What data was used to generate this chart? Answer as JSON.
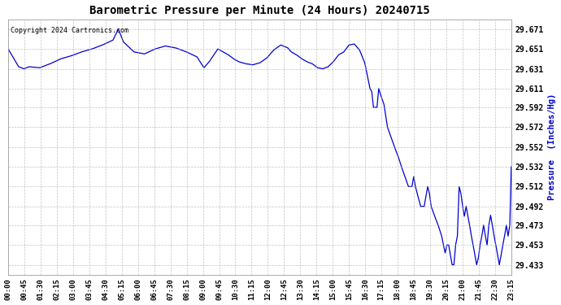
{
  "title": "Barometric Pressure per Minute (24 Hours) 20240715",
  "copyright_text": "Copyright 2024 Cartronics.com",
  "ylabel": "Pressure  (Inches/Hg)",
  "line_color": "#0000CC",
  "bg_color": "#ffffff",
  "grid_color": "#aaaaaa",
  "yticks": [
    29.433,
    29.453,
    29.473,
    29.492,
    29.512,
    29.532,
    29.552,
    29.572,
    29.592,
    29.611,
    29.631,
    29.651,
    29.671
  ],
  "ylim": [
    29.423,
    29.681
  ],
  "xtick_labels": [
    "00:00",
    "00:45",
    "01:30",
    "02:15",
    "03:00",
    "03:45",
    "04:30",
    "05:15",
    "06:00",
    "06:45",
    "07:30",
    "08:15",
    "09:00",
    "09:45",
    "10:30",
    "11:15",
    "12:00",
    "12:45",
    "13:30",
    "14:15",
    "15:00",
    "15:45",
    "16:30",
    "17:15",
    "18:00",
    "18:45",
    "19:30",
    "20:15",
    "21:00",
    "21:45",
    "22:30",
    "23:15"
  ],
  "key_points": [
    [
      0,
      29.651
    ],
    [
      30,
      29.633
    ],
    [
      45,
      29.631
    ],
    [
      60,
      29.633
    ],
    [
      90,
      29.632
    ],
    [
      120,
      29.636
    ],
    [
      150,
      29.641
    ],
    [
      180,
      29.644
    ],
    [
      210,
      29.648
    ],
    [
      240,
      29.651
    ],
    [
      270,
      29.655
    ],
    [
      300,
      29.66
    ],
    [
      315,
      29.671
    ],
    [
      330,
      29.658
    ],
    [
      360,
      29.648
    ],
    [
      390,
      29.646
    ],
    [
      420,
      29.651
    ],
    [
      450,
      29.654
    ],
    [
      480,
      29.652
    ],
    [
      510,
      29.648
    ],
    [
      540,
      29.643
    ],
    [
      560,
      29.632
    ],
    [
      575,
      29.638
    ],
    [
      590,
      29.646
    ],
    [
      600,
      29.651
    ],
    [
      615,
      29.648
    ],
    [
      630,
      29.645
    ],
    [
      645,
      29.641
    ],
    [
      660,
      29.638
    ],
    [
      680,
      29.636
    ],
    [
      700,
      29.635
    ],
    [
      720,
      29.637
    ],
    [
      740,
      29.642
    ],
    [
      760,
      29.65
    ],
    [
      780,
      29.655
    ],
    [
      800,
      29.652
    ],
    [
      810,
      29.648
    ],
    [
      825,
      29.645
    ],
    [
      840,
      29.641
    ],
    [
      855,
      29.638
    ],
    [
      870,
      29.636
    ],
    [
      885,
      29.632
    ],
    [
      900,
      29.631
    ],
    [
      915,
      29.633
    ],
    [
      930,
      29.638
    ],
    [
      945,
      29.645
    ],
    [
      960,
      29.648
    ],
    [
      975,
      29.655
    ],
    [
      990,
      29.656
    ],
    [
      1005,
      29.65
    ],
    [
      1020,
      29.637
    ],
    [
      1035,
      29.611
    ],
    [
      1040,
      29.608
    ],
    [
      1045,
      29.592
    ],
    [
      1055,
      29.592
    ],
    [
      1060,
      29.611
    ],
    [
      1065,
      29.605
    ],
    [
      1075,
      29.595
    ],
    [
      1085,
      29.572
    ],
    [
      1095,
      29.562
    ],
    [
      1105,
      29.552
    ],
    [
      1115,
      29.543
    ],
    [
      1125,
      29.532
    ],
    [
      1135,
      29.522
    ],
    [
      1145,
      29.512
    ],
    [
      1155,
      29.512
    ],
    [
      1160,
      29.522
    ],
    [
      1165,
      29.512
    ],
    [
      1170,
      29.505
    ],
    [
      1180,
      29.492
    ],
    [
      1190,
      29.492
    ],
    [
      1200,
      29.512
    ],
    [
      1205,
      29.505
    ],
    [
      1210,
      29.492
    ],
    [
      1220,
      29.482
    ],
    [
      1230,
      29.473
    ],
    [
      1240,
      29.462
    ],
    [
      1245,
      29.453
    ],
    [
      1250,
      29.445
    ],
    [
      1255,
      29.453
    ],
    [
      1260,
      29.453
    ],
    [
      1265,
      29.443
    ],
    [
      1270,
      29.433
    ],
    [
      1275,
      29.433
    ],
    [
      1280,
      29.453
    ],
    [
      1285,
      29.462
    ],
    [
      1290,
      29.512
    ],
    [
      1295,
      29.505
    ],
    [
      1300,
      29.492
    ],
    [
      1305,
      29.482
    ],
    [
      1310,
      29.492
    ],
    [
      1315,
      29.482
    ],
    [
      1320,
      29.473
    ],
    [
      1325,
      29.462
    ],
    [
      1330,
      29.453
    ],
    [
      1335,
      29.443
    ],
    [
      1340,
      29.433
    ],
    [
      1345,
      29.44
    ],
    [
      1350,
      29.453
    ],
    [
      1355,
      29.462
    ],
    [
      1360,
      29.473
    ],
    [
      1365,
      29.462
    ],
    [
      1370,
      29.453
    ],
    [
      1375,
      29.473
    ],
    [
      1380,
      29.483
    ],
    [
      1385,
      29.473
    ],
    [
      1390,
      29.462
    ],
    [
      1395,
      29.453
    ],
    [
      1400,
      29.443
    ],
    [
      1405,
      29.433
    ],
    [
      1410,
      29.443
    ],
    [
      1415,
      29.453
    ],
    [
      1420,
      29.462
    ],
    [
      1425,
      29.473
    ],
    [
      1430,
      29.462
    ],
    [
      1435,
      29.473
    ],
    [
      1439,
      29.532
    ]
  ]
}
